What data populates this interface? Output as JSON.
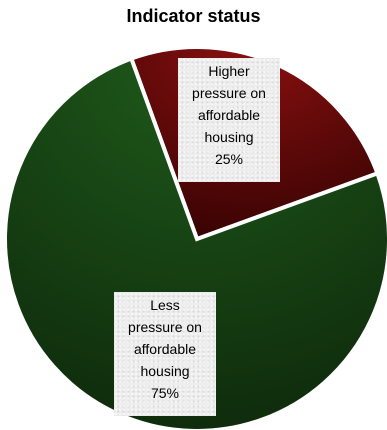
{
  "chart_data": {
    "type": "pie",
    "title": "Indicator status",
    "slices": [
      {
        "label_lines": [
          "Higher",
          "pressure on",
          "affordable",
          "housing"
        ],
        "value": 25,
        "percent_label": "25%",
        "color": "#6e0909"
      },
      {
        "label_lines": [
          "Less",
          "pressure on",
          "affordable",
          "housing"
        ],
        "value": 75,
        "percent_label": "75%",
        "color": "#1a4716"
      }
    ],
    "legend": "none"
  }
}
